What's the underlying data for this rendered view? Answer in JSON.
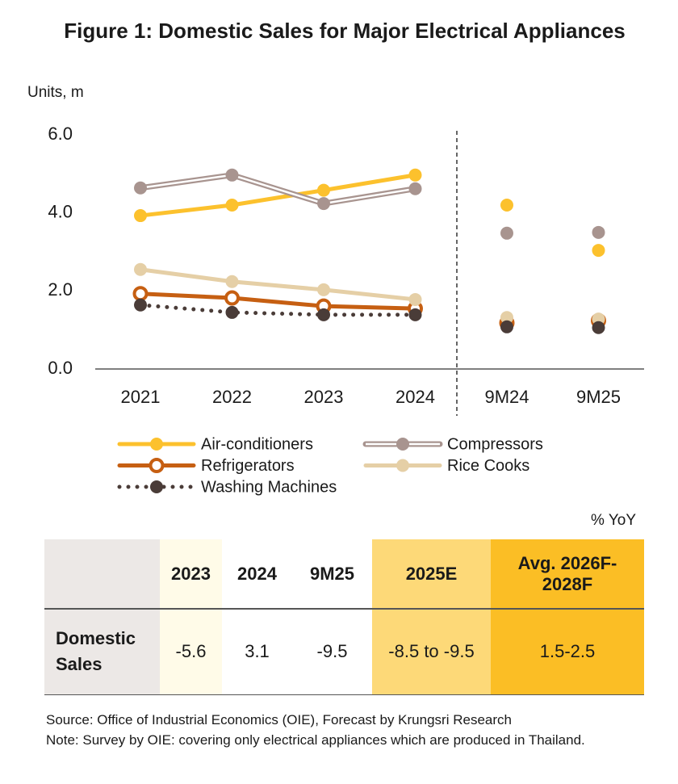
{
  "chart_data": {
    "type": "line",
    "title": "Figure 1: Domestic Sales for Major Electrical Appliances",
    "y_label": "Units, m",
    "categories": [
      "2021",
      "2022",
      "2023",
      "2024",
      "9M24",
      "9M25"
    ],
    "ylim": [
      0,
      6
    ],
    "yticks": [
      {
        "value": 0,
        "label": "0.0"
      },
      {
        "value": 2,
        "label": "2.0"
      },
      {
        "value": 4,
        "label": "4.0"
      },
      {
        "value": 6,
        "label": "6.0"
      }
    ],
    "series": [
      {
        "name": "Air-conditioners",
        "color": "#fcc12d",
        "line_style": "solid",
        "marker": "filled",
        "values": [
          3.93,
          4.2,
          4.58,
          4.97,
          4.2,
          3.04
        ]
      },
      {
        "name": "Compressors",
        "color": "#a8948f",
        "line_style": "double",
        "marker": "filled",
        "values": [
          4.64,
          4.97,
          4.24,
          4.62,
          3.48,
          3.5
        ]
      },
      {
        "name": "Refrigerators",
        "color": "#c65f12",
        "line_style": "solid",
        "marker": "hollow",
        "values": [
          1.93,
          1.82,
          1.61,
          1.55,
          1.18,
          1.24
        ]
      },
      {
        "name": "Rice Cooks",
        "color": "#e5cfa6",
        "line_style": "solid",
        "marker": "filled",
        "values": [
          2.55,
          2.24,
          2.03,
          1.78,
          1.32,
          1.28
        ]
      },
      {
        "name": "Washing Machines",
        "color": "#4a3c38",
        "line_style": "dotted",
        "marker": "filled",
        "values": [
          1.64,
          1.45,
          1.39,
          1.39,
          1.08,
          1.06
        ]
      }
    ]
  },
  "table": {
    "unit": "% YoY",
    "columns": [
      "2023",
      "2024",
      "9M25",
      "2025E",
      "Avg. 2026F-2028F"
    ],
    "rows": [
      {
        "label": "Domestic Sales",
        "values": [
          "-5.6",
          "3.1",
          "-9.5",
          "-8.5 to -9.5",
          "1.5-2.5"
        ]
      }
    ]
  },
  "footer": {
    "source": "Source: Office of Industrial Economics (OIE), Forecast by Krungsri Research",
    "note": "Note: Survey by OIE: covering only electrical appliances which are produced in Thailand."
  }
}
